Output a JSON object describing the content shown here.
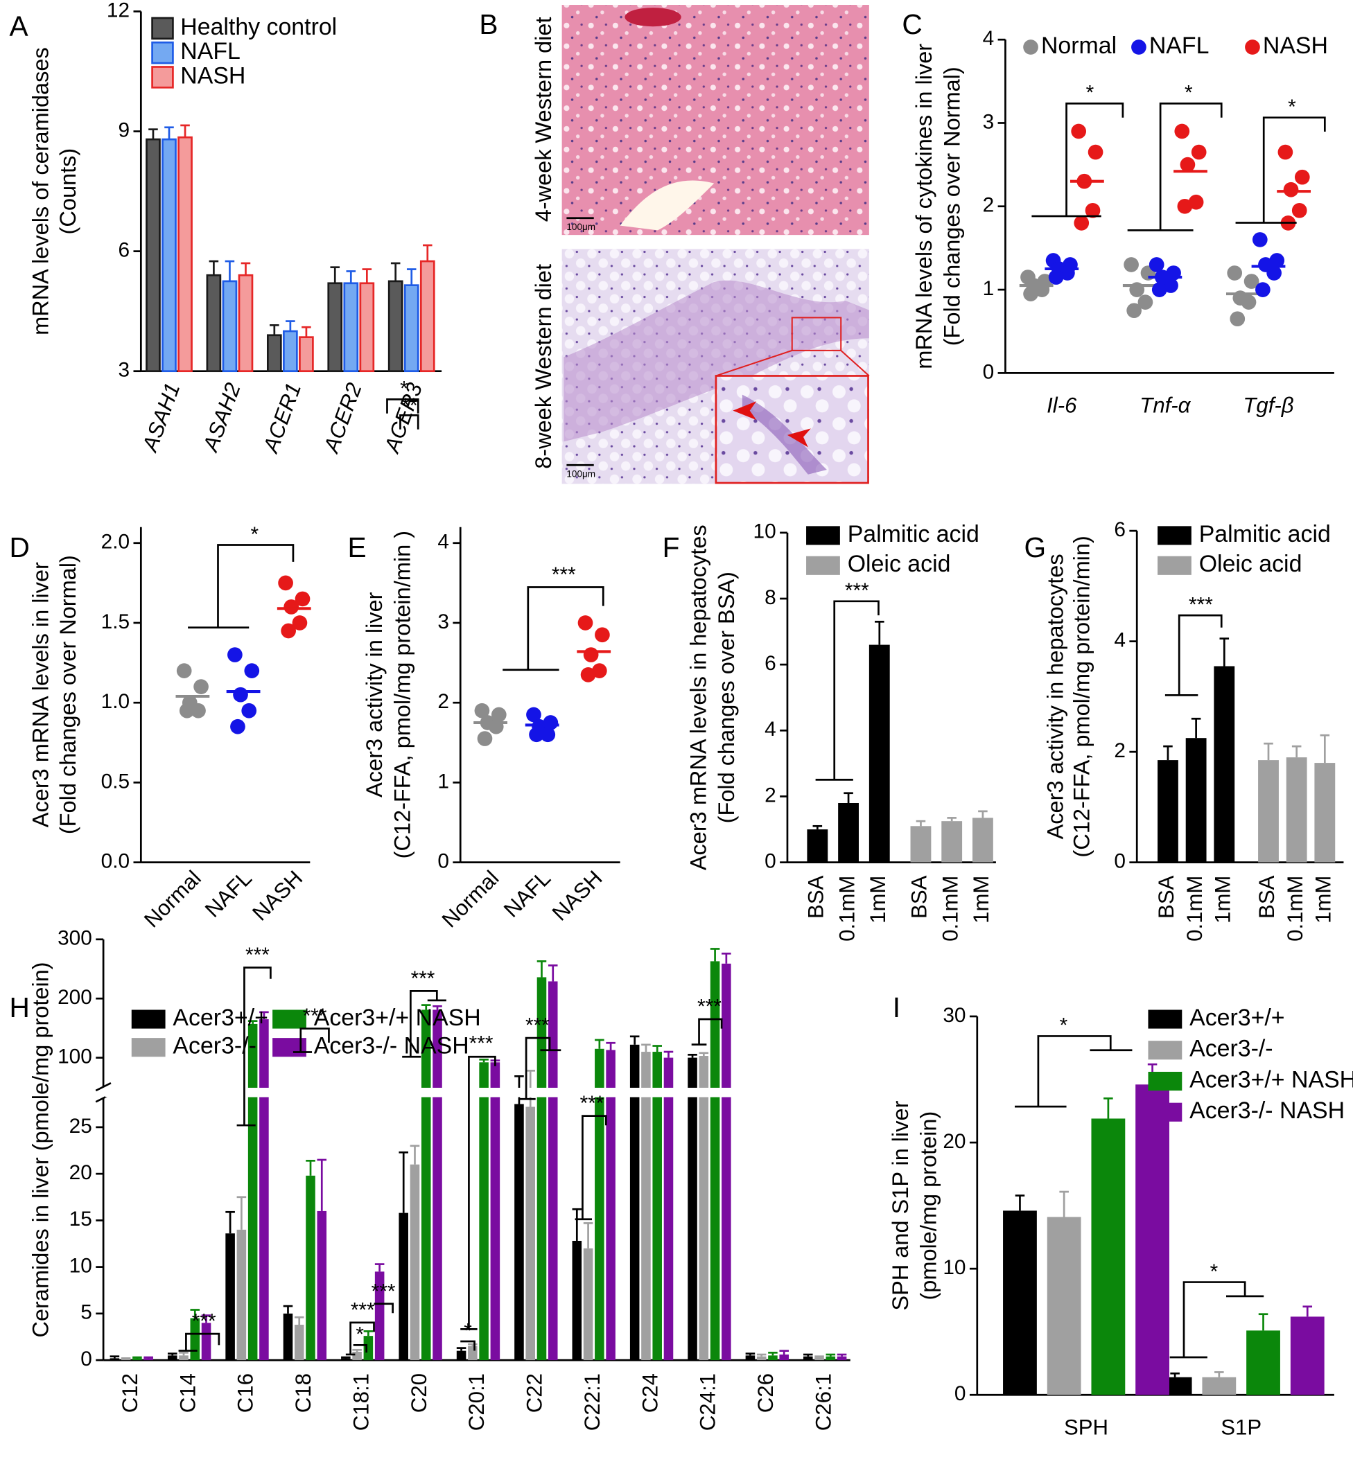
{
  "micrographs": {
    "panel": "B",
    "labels": [
      "4-week Western diet",
      "8-week Western diet"
    ],
    "scale_bar": "100μm"
  },
  "chart_data": [
    {
      "panel": "A",
      "type": "bar",
      "ylabel": [
        "mRNA levels of ceramidases",
        "(Counts)"
      ],
      "categories": [
        "ASAH1",
        "ASAH2",
        "ACER1",
        "ACER2",
        "ACER3"
      ],
      "series": [
        {
          "name": "Healthy control",
          "color": "#5a5a5a",
          "edgecolor": "#1a1a1a",
          "values": [
            8.8,
            5.4,
            3.9,
            5.2,
            5.25
          ],
          "errors": [
            0.25,
            0.35,
            0.25,
            0.4,
            0.45
          ]
        },
        {
          "name": "NAFL",
          "color": "#74a9f2",
          "edgecolor": "#1f5ce6",
          "values": [
            8.8,
            5.25,
            4.0,
            5.2,
            5.15
          ],
          "errors": [
            0.3,
            0.5,
            0.25,
            0.3,
            0.4
          ]
        },
        {
          "name": "NASH",
          "color": "#f49b9b",
          "edgecolor": "#e62727",
          "values": [
            8.85,
            5.4,
            3.85,
            5.2,
            5.75
          ],
          "errors": [
            0.3,
            0.3,
            0.25,
            0.35,
            0.4
          ]
        }
      ],
      "ylim": [
        3,
        12
      ],
      "yticks": [
        3,
        6,
        9,
        12
      ],
      "annotations": [
        "*",
        "**"
      ]
    },
    {
      "panel": "C",
      "type": "strip",
      "ylabel": [
        "mRNA levels of cytokines in liver",
        "(Fold changes over Normal)"
      ],
      "categories": [
        "Il-6",
        "Tnf-α",
        "Tgf-β"
      ],
      "series": [
        {
          "name": "Normal",
          "color": "#8c8c8c",
          "values": [
            [
              1.15,
              1.1,
              1.05,
              1.0,
              0.95
            ],
            [
              1.3,
              1.2,
              1.0,
              0.85,
              0.75
            ],
            [
              1.2,
              1.1,
              0.9,
              0.85,
              0.65
            ]
          ],
          "means": [
            1.05,
            1.05,
            0.95
          ]
        },
        {
          "name": "NAFL",
          "color": "#1414e6",
          "values": [
            [
              1.35,
              1.3,
              1.25,
              1.2,
              1.15
            ],
            [
              1.3,
              1.2,
              1.15,
              1.05,
              1.0
            ],
            [
              1.6,
              1.35,
              1.3,
              1.2,
              1.0
            ]
          ],
          "means": [
            1.25,
            1.15,
            1.28
          ]
        },
        {
          "name": "NASH",
          "color": "#e61919",
          "values": [
            [
              2.9,
              2.65,
              2.3,
              1.95,
              1.8
            ],
            [
              2.9,
              2.65,
              2.5,
              2.05,
              2.0
            ],
            [
              2.65,
              2.35,
              2.2,
              1.95,
              1.8
            ]
          ],
          "means": [
            2.3,
            2.42,
            2.18
          ]
        }
      ],
      "ylim": [
        0,
        4
      ],
      "yticks": [
        0,
        1,
        2,
        3,
        4
      ],
      "annotations": [
        "*",
        "*",
        "*"
      ]
    },
    {
      "panel": "D",
      "type": "strip",
      "ylabel": [
        "Acer3 mRNA levels in liver",
        "(Fold changes over Normal)"
      ],
      "categories": [
        "Normal",
        "NAFL",
        "NASH"
      ],
      "colors": [
        "#8c8c8c",
        "#1414e6",
        "#e61919"
      ],
      "values": [
        [
          1.2,
          1.1,
          1.0,
          0.95,
          0.95
        ],
        [
          1.3,
          1.2,
          1.05,
          0.95,
          0.85
        ],
        [
          1.75,
          1.65,
          1.6,
          1.5,
          1.45
        ]
      ],
      "means": [
        1.04,
        1.07,
        1.59
      ],
      "ylim": [
        0,
        2.1
      ],
      "yticks": [
        {
          "value": 0,
          "label": "0.0"
        },
        0.5,
        {
          "value": 1,
          "label": "1.0"
        },
        1.5,
        {
          "value": 2,
          "label": "2.0"
        }
      ],
      "annotations": [
        "*"
      ]
    },
    {
      "panel": "E",
      "type": "strip",
      "ylabel": [
        "Acer3 activity in liver",
        "(C12-FFA, pmol/mg protein/min )"
      ],
      "categories": [
        "Normal",
        "NAFL",
        "NASH"
      ],
      "colors": [
        "#8c8c8c",
        "#1414e6",
        "#e61919"
      ],
      "values": [
        [
          1.9,
          1.85,
          1.75,
          1.7,
          1.55
        ],
        [
          1.85,
          1.75,
          1.7,
          1.6,
          1.6
        ],
        [
          3.0,
          2.85,
          2.6,
          2.4,
          2.35
        ]
      ],
      "means": [
        1.75,
        1.72,
        2.64
      ],
      "ylim": [
        0,
        4.2
      ],
      "yticks": [
        0,
        1,
        2,
        3,
        4
      ],
      "annotations": [
        "***"
      ]
    },
    {
      "panel": "F",
      "type": "bar",
      "ylabel": [
        "Acer3 mRNA levels in hepatocytes",
        "(Fold changes over BSA)"
      ],
      "categories": [
        "BSA",
        "0.1mM",
        "1mM"
      ],
      "series": [
        {
          "name": "Palmitic acid",
          "color": "#000000",
          "values": [
            1.0,
            1.8,
            6.6
          ],
          "errors": [
            0.1,
            0.3,
            0.7
          ]
        },
        {
          "name": "Oleic acid",
          "color": "#a0a0a0",
          "values": [
            1.1,
            1.25,
            1.35
          ],
          "errors": [
            0.15,
            0.1,
            0.2
          ]
        }
      ],
      "ylim": [
        0,
        10
      ],
      "yticks": [
        0,
        2,
        4,
        6,
        8,
        10
      ],
      "annotations": [
        "***"
      ]
    },
    {
      "panel": "G",
      "type": "bar",
      "ylabel": [
        "Acer3 activity in hepatocytes",
        "(C12-FFA, pmol/mg protein/min)"
      ],
      "categories": [
        "BSA",
        "0.1mM",
        "1mM"
      ],
      "series": [
        {
          "name": "Palmitic acid",
          "color": "#000000",
          "values": [
            1.85,
            2.25,
            3.55
          ],
          "errors": [
            0.25,
            0.35,
            0.5
          ]
        },
        {
          "name": "Oleic acid",
          "color": "#a0a0a0",
          "values": [
            1.85,
            1.9,
            1.8
          ],
          "errors": [
            0.3,
            0.2,
            0.5
          ]
        }
      ],
      "ylim": [
        0,
        6
      ],
      "yticks": [
        0,
        2,
        4,
        6
      ],
      "annotations": [
        "***"
      ]
    },
    {
      "panel": "H",
      "type": "bar",
      "ylabel": [
        "Ceramides in liver (pmole/mg protein)"
      ],
      "categories": [
        "C12",
        "C14",
        "C16",
        "C18",
        "C18:1",
        "C20",
        "C20:1",
        "C22",
        "C22:1",
        "C24",
        "C24:1",
        "C26",
        "C26:1"
      ],
      "series": [
        {
          "name": "Acer3+/+",
          "color": "#000000",
          "values": [
            0.2,
            0.5,
            13.6,
            5.0,
            0.2,
            15.8,
            1.0,
            50,
            12.8,
            122,
            100,
            0.5,
            0.4
          ],
          "errors": [
            0.2,
            0.2,
            2.3,
            0.8,
            0.1,
            6.5,
            0.3,
            30,
            3.4,
            14,
            5,
            0.2,
            0.2
          ]
        },
        {
          "name": "Acer3-/-",
          "color": "#a0a0a0",
          "values": [
            0.1,
            0.5,
            14,
            3.8,
            0.9,
            21,
            1.5,
            47,
            12,
            110,
            103,
            0.4,
            0.3
          ],
          "errors": [
            0.1,
            0.3,
            3.5,
            0.8,
            0.2,
            2,
            0.2,
            39,
            2.7,
            12,
            5,
            0.2,
            0.1
          ]
        },
        {
          "name": "Acer3+/+ NASH",
          "color": "#0b870b",
          "values": [
            0.2,
            4.5,
            157,
            19.8,
            2.6,
            181,
            95,
            236,
            115,
            110,
            263,
            0.5,
            0.4
          ],
          "errors": [
            0.1,
            0.9,
            5,
            1.6,
            0.5,
            8,
            3,
            27,
            15,
            10,
            21,
            0.3,
            0.2
          ]
        },
        {
          "name": "Acer3-/- NASH",
          "color": "#7a0ca0",
          "values": [
            0.2,
            4.0,
            165,
            16,
            9.5,
            181,
            95,
            229,
            113,
            100,
            259,
            0.6,
            0.4
          ],
          "errors": [
            0.1,
            0.8,
            12,
            5.5,
            0.8,
            6,
            2,
            27,
            12,
            10,
            17,
            0.4,
            0.2
          ]
        }
      ],
      "ylim": [
        0,
        300
      ],
      "yticks": [
        0,
        5,
        10,
        15,
        20,
        25,
        100,
        200,
        300
      ],
      "annotations": [
        "***",
        "***",
        "***",
        "***",
        "*",
        "***",
        "***",
        "***",
        "*",
        "***",
        "***",
        "***"
      ]
    },
    {
      "panel": "I",
      "type": "bar",
      "ylabel": [
        "SPH and S1P in liver",
        "(pmole/mg protein)"
      ],
      "categories": [
        "SPH",
        "S1P"
      ],
      "series": [
        {
          "name": "Acer3+/+",
          "color": "#000000",
          "values": [
            14.6,
            1.4
          ],
          "errors": [
            1.2,
            0.3
          ]
        },
        {
          "name": "Acer3-/-",
          "color": "#a0a0a0",
          "values": [
            14.1,
            1.4
          ],
          "errors": [
            2.0,
            0.4
          ]
        },
        {
          "name": "Acer3+/+ NASH",
          "color": "#0b870b",
          "values": [
            21.9,
            5.1
          ],
          "errors": [
            1.6,
            1.3
          ]
        },
        {
          "name": "Acer3-/- NASH",
          "color": "#7a0ca0",
          "values": [
            24.6,
            6.2
          ],
          "errors": [
            1.6,
            0.8
          ]
        }
      ],
      "ylim": [
        0,
        30
      ],
      "yticks": [
        0,
        10,
        20,
        30
      ],
      "annotations": [
        "*",
        "*"
      ]
    }
  ]
}
